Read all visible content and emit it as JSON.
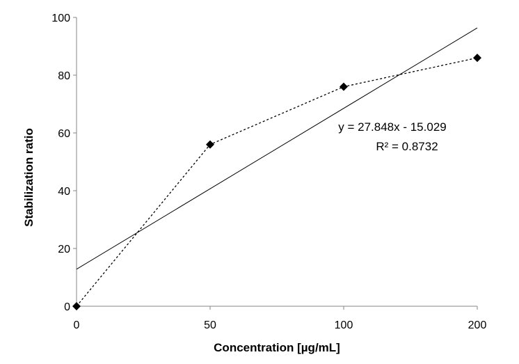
{
  "chart_data": {
    "type": "line",
    "title": "",
    "xlabel": "Concentration [µg/mL]",
    "ylabel": "Stabilization ratio",
    "categories": [
      "0",
      "50",
      "100",
      "200"
    ],
    "ylim": [
      0,
      100
    ],
    "yticks": [
      "0",
      "20",
      "40",
      "60",
      "80",
      "100"
    ],
    "grid": false,
    "series": [
      {
        "values": [
          0,
          56,
          76,
          86
        ],
        "style": "dashed",
        "marker": "diamond",
        "color": "#000000"
      }
    ],
    "trendline": {
      "type": "linear",
      "slope": 27.848,
      "intercept": -15.029,
      "equation": "y = 27.848x - 15.029",
      "r_squared": "R² = 0.8732",
      "color": "#000000"
    }
  }
}
